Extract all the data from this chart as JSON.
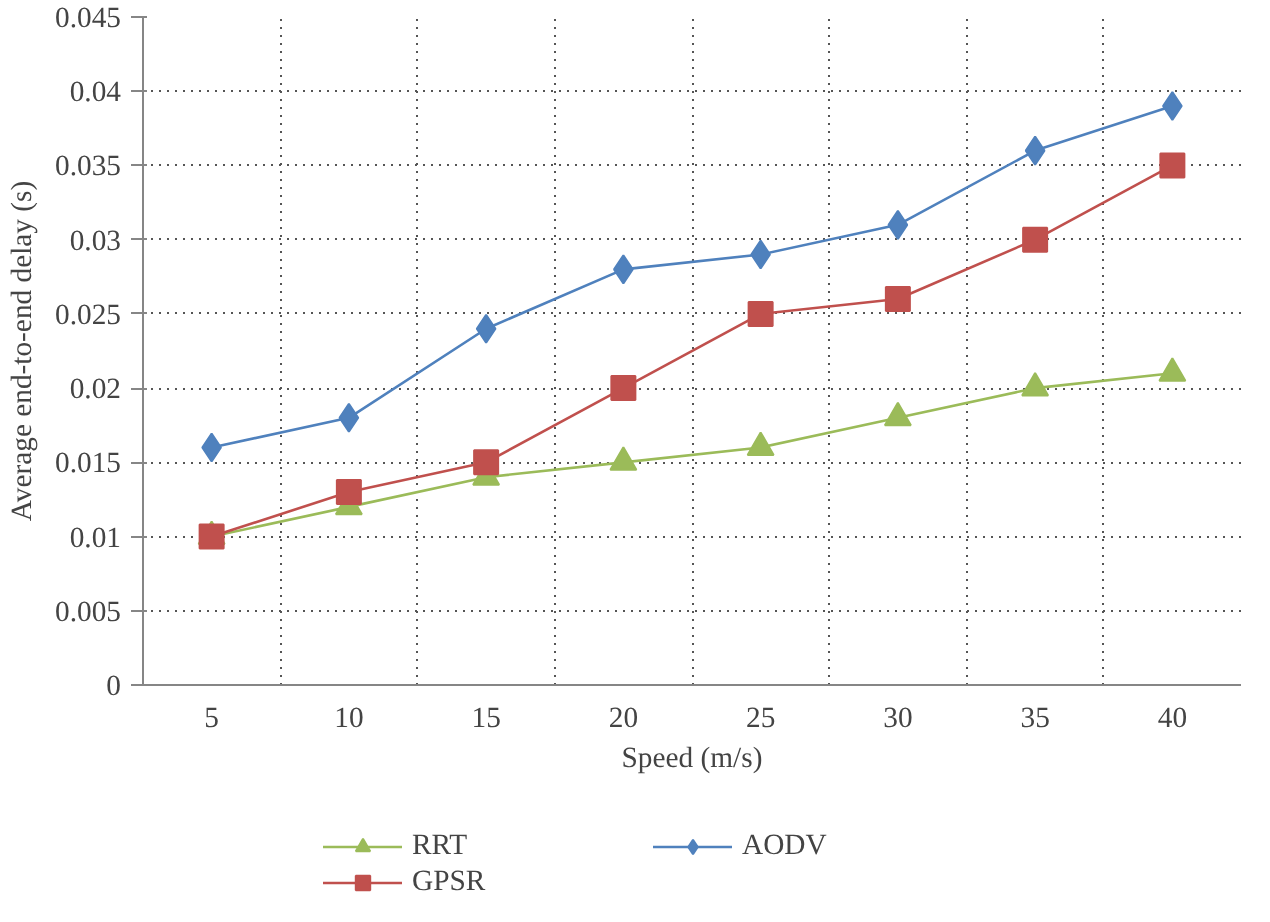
{
  "chart_data": {
    "type": "line",
    "xlabel": "Speed (m/s)",
    "ylabel": "Average end-to-end delay (s)",
    "categories": [
      "5",
      "10",
      "15",
      "20",
      "25",
      "30",
      "35",
      "40"
    ],
    "ylim": [
      0,
      0.045
    ],
    "yticks": [
      0,
      0.005,
      0.01,
      0.015,
      0.02,
      0.025,
      0.03,
      0.035,
      0.04,
      0.045
    ],
    "grid": true,
    "legend": "bottom",
    "series": [
      {
        "name": "RRT",
        "color": "#9bbb59",
        "marker": "triangle",
        "values": [
          0.01,
          0.012,
          0.014,
          0.015,
          0.016,
          0.018,
          0.02,
          0.021
        ]
      },
      {
        "name": "GPSR",
        "color": "#c0504d",
        "marker": "square",
        "values": [
          0.01,
          0.013,
          0.015,
          0.02,
          0.025,
          0.026,
          0.03,
          0.035
        ]
      },
      {
        "name": "AODV",
        "color": "#4f81bd",
        "marker": "diamond",
        "values": [
          0.016,
          0.018,
          0.024,
          0.028,
          0.029,
          0.031,
          0.036,
          0.039
        ]
      }
    ]
  }
}
